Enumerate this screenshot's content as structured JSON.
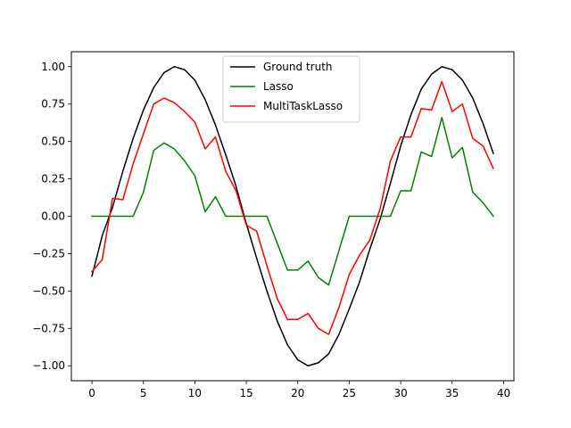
{
  "chart_data": {
    "type": "line",
    "title": "",
    "xlabel": "",
    "ylabel": "",
    "xlim": [
      -2,
      41
    ],
    "ylim": [
      -1.1,
      1.1
    ],
    "grid": false,
    "legend_position": "top-center",
    "xticks": [
      0,
      5,
      10,
      15,
      20,
      25,
      30,
      35,
      40
    ],
    "xtick_labels": [
      "0",
      "5",
      "10",
      "15",
      "20",
      "25",
      "30",
      "35",
      "40"
    ],
    "yticks": [
      -1.0,
      -0.75,
      -0.5,
      -0.25,
      0.0,
      0.25,
      0.5,
      0.75,
      1.0
    ],
    "ytick_labels": [
      "−1.00",
      "−0.75",
      "−0.50",
      "−0.25",
      "0.00",
      "0.25",
      "0.50",
      "0.75",
      "1.00"
    ],
    "x": [
      0,
      1,
      2,
      3,
      4,
      5,
      6,
      7,
      8,
      9,
      10,
      11,
      12,
      13,
      14,
      15,
      16,
      17,
      18,
      19,
      20,
      21,
      22,
      23,
      24,
      25,
      26,
      27,
      28,
      29,
      30,
      31,
      32,
      33,
      34,
      35,
      36,
      37,
      38,
      39
    ],
    "series": [
      {
        "name": "Ground truth",
        "color": "#000000",
        "values": [
          -0.4,
          -0.13,
          0.06,
          0.3,
          0.52,
          0.71,
          0.86,
          0.96,
          1.0,
          0.98,
          0.91,
          0.78,
          0.61,
          0.41,
          0.2,
          -0.05,
          -0.28,
          -0.5,
          -0.7,
          -0.86,
          -0.96,
          -1.0,
          -0.98,
          -0.92,
          -0.79,
          -0.62,
          -0.44,
          -0.22,
          -0.02,
          0.22,
          0.47,
          0.68,
          0.85,
          0.95,
          1.0,
          0.98,
          0.91,
          0.79,
          0.62,
          0.42
        ]
      },
      {
        "name": "Lasso",
        "color": "#008000",
        "values": [
          0.0,
          0.0,
          0.0,
          0.0,
          0.0,
          0.16,
          0.44,
          0.49,
          0.45,
          0.37,
          0.27,
          0.03,
          0.13,
          0.0,
          0.0,
          0.0,
          0.0,
          0.0,
          -0.18,
          -0.36,
          -0.36,
          -0.3,
          -0.41,
          -0.46,
          -0.23,
          0.0,
          0.0,
          0.0,
          0.0,
          0.0,
          0.17,
          0.17,
          0.43,
          0.4,
          0.66,
          0.39,
          0.46,
          0.16,
          0.09,
          0.0
        ]
      },
      {
        "name": "MultiTaskLasso",
        "color": "#ff0000",
        "values": [
          -0.37,
          -0.29,
          0.12,
          0.11,
          0.35,
          0.55,
          0.75,
          0.79,
          0.76,
          0.7,
          0.63,
          0.45,
          0.53,
          0.3,
          0.17,
          -0.06,
          -0.1,
          -0.33,
          -0.55,
          -0.69,
          -0.69,
          -0.65,
          -0.75,
          -0.79,
          -0.61,
          -0.39,
          -0.26,
          -0.16,
          0.05,
          0.37,
          0.53,
          0.53,
          0.72,
          0.71,
          0.9,
          0.7,
          0.75,
          0.52,
          0.47,
          0.32
        ]
      }
    ]
  }
}
